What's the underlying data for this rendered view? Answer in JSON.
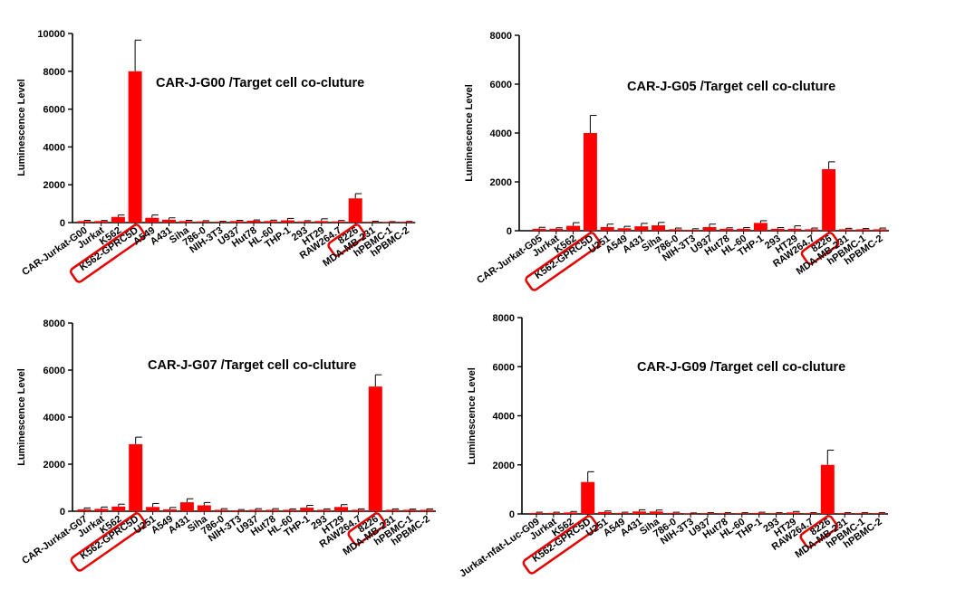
{
  "chart_data": [
    {
      "type": "bar",
      "title": "CAR-J-G00 /Target cell  co-cluture",
      "xlabel": "",
      "ylabel": "Luminescence Level",
      "ylim": [
        0,
        10000
      ],
      "yticks": [
        "0",
        "2000",
        "4000",
        "6000",
        "8000",
        "10000"
      ],
      "bar_color": "#ff0000",
      "highlight_color": "#e60000",
      "highlight": [
        "K562-GPRC5D",
        "8226"
      ],
      "categories": [
        "CAR-Jurkat-G00",
        "Jurkat",
        "K562",
        "K562-GPRC5D",
        "A549",
        "A431",
        "Siha",
        "786-0",
        "NIH-3T3",
        "U937",
        "Hut78",
        "HL-60",
        "THP-1",
        "293",
        "HT29",
        "RAW264.7",
        "8226",
        "MDA-MB-231",
        "hPBMC-1",
        "hPBMC-2"
      ],
      "values": [
        80,
        80,
        300,
        8000,
        250,
        150,
        80,
        60,
        40,
        80,
        100,
        80,
        120,
        60,
        80,
        60,
        1280,
        40,
        30,
        40
      ],
      "errors": [
        40,
        30,
        100,
        1650,
        150,
        100,
        40,
        40,
        30,
        40,
        40,
        50,
        100,
        40,
        120,
        50,
        250,
        30,
        20,
        20
      ]
    },
    {
      "type": "bar",
      "title": "CAR-J-G05 /Target cell  co-cluture",
      "xlabel": "",
      "ylabel": "Luminescence Level",
      "ylim": [
        0,
        8000
      ],
      "yticks": [
        "0",
        "2000",
        "4000",
        "6000",
        "8000"
      ],
      "bar_color": "#ff0000",
      "highlight_color": "#e60000",
      "highlight": [
        "K562-GPRC5D",
        "8226"
      ],
      "categories": [
        "CAR-Jurkat-G05",
        "Jurkat",
        "K562",
        "K562-GPRC5D",
        "U251",
        "A549",
        "A431",
        "Siha",
        "786-0",
        "NIH-3T3",
        "U937",
        "Hut78",
        "HL-60",
        "THP-1",
        "293",
        "HT29",
        "RAW264.7",
        "8226",
        "MDA-MB-231",
        "hPBMC-1",
        "hPBMC-2"
      ],
      "values": [
        80,
        80,
        200,
        4000,
        150,
        100,
        180,
        220,
        60,
        40,
        150,
        80,
        80,
        320,
        80,
        80,
        60,
        2520,
        60,
        60,
        60
      ],
      "errors": [
        60,
        40,
        130,
        720,
        120,
        80,
        120,
        120,
        50,
        40,
        120,
        40,
        50,
        90,
        50,
        120,
        50,
        300,
        40,
        30,
        50
      ]
    },
    {
      "type": "bar",
      "title": "CAR-J-G07 /Target cell  co-cluture",
      "xlabel": "",
      "ylabel": "Luminescence Level",
      "ylim": [
        0,
        8000
      ],
      "yticks": [
        "0",
        "2000",
        "4000",
        "6000",
        "8000"
      ],
      "bar_color": "#ff0000",
      "highlight_color": "#e60000",
      "highlight": [
        "K562-GPRC5D",
        "8226"
      ],
      "categories": [
        "CAR-Jurkat-G07",
        "Jurkat",
        "K562",
        "K562-GPRC5D",
        "U251",
        "A549",
        "A431",
        "Siha",
        "786-0",
        "NIH-3T3",
        "U937",
        "Hut78",
        "HL-60",
        "THP-1",
        "293",
        "HT29",
        "RAW264.7",
        "8226",
        "MDA-MB-231",
        "hPBMC-1",
        "hPBMC-2"
      ],
      "values": [
        80,
        100,
        200,
        2850,
        180,
        80,
        380,
        250,
        60,
        40,
        60,
        60,
        60,
        150,
        60,
        180,
        60,
        5300,
        60,
        60,
        60
      ],
      "errors": [
        60,
        80,
        100,
        300,
        150,
        80,
        150,
        120,
        50,
        30,
        50,
        50,
        40,
        100,
        40,
        100,
        40,
        500,
        40,
        30,
        40
      ]
    },
    {
      "type": "bar",
      "title": "CAR-J-G09 /Target cell  co-cluture",
      "xlabel": "",
      "ylabel": "Luminescence Level",
      "ylim": [
        0,
        8000
      ],
      "yticks": [
        "0",
        "2000",
        "4000",
        "6000",
        "8000"
      ],
      "bar_color": "#ff0000",
      "highlight_color": "#e60000",
      "highlight": [
        "K562-GPRC5D",
        "8226"
      ],
      "categories": [
        "Jurkat-nfat-Luc-G09",
        "Jurkat",
        "K562",
        "K562-GPRC5D",
        "U251",
        "A549",
        "A431",
        "Siha",
        "786-0",
        "NIH-3T3",
        "U937",
        "Hut78",
        "HL-60",
        "THP-1",
        "293",
        "HT29",
        "RAW264.7",
        "8226",
        "MDA-MB-231",
        "hPBMC-1",
        "hPBMC-2"
      ],
      "values": [
        40,
        40,
        60,
        1300,
        80,
        40,
        100,
        100,
        40,
        20,
        30,
        30,
        30,
        40,
        30,
        60,
        30,
        2000,
        30,
        30,
        30
      ],
      "errors": [
        30,
        30,
        40,
        420,
        40,
        30,
        70,
        60,
        30,
        20,
        20,
        20,
        20,
        30,
        20,
        40,
        20,
        600,
        20,
        20,
        20
      ]
    }
  ]
}
